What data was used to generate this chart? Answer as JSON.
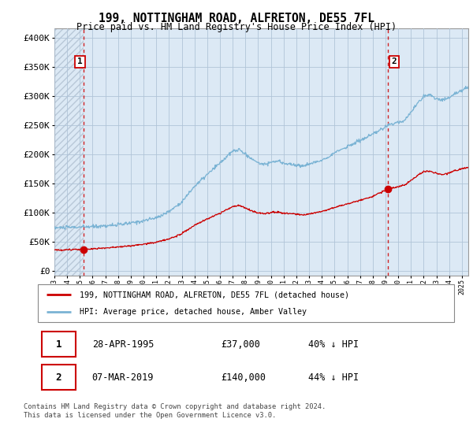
{
  "title": "199, NOTTINGHAM ROAD, ALFRETON, DE55 7FL",
  "subtitle": "Price paid vs. HM Land Registry's House Price Index (HPI)",
  "hpi_color": "#7ab3d4",
  "price_color": "#cc0000",
  "vline_color": "#cc0000",
  "bg_color": "#dce9f5",
  "hatch_color": "#b8c8d8",
  "grid_color": "#b0c4d8",
  "purchase1_year": 1995.32,
  "purchase1_price": 37000,
  "purchase1_label": "1",
  "purchase2_year": 2019.18,
  "purchase2_price": 140000,
  "purchase2_label": "2",
  "ylabel_values": [
    0,
    50000,
    100000,
    150000,
    200000,
    250000,
    300000,
    350000,
    400000
  ],
  "ylabel_texts": [
    "£0",
    "£50K",
    "£100K",
    "£150K",
    "£200K",
    "£250K",
    "£300K",
    "£350K",
    "£400K"
  ],
  "xmin": 1993,
  "xmax": 2025.5,
  "ymin": -8000,
  "ymax": 415000,
  "legend_line1": "199, NOTTINGHAM ROAD, ALFRETON, DE55 7FL (detached house)",
  "legend_line2": "HPI: Average price, detached house, Amber Valley",
  "table_row1_num": "1",
  "table_row1_date": "28-APR-1995",
  "table_row1_price": "£37,000",
  "table_row1_hpi": "40% ↓ HPI",
  "table_row2_num": "2",
  "table_row2_date": "07-MAR-2019",
  "table_row2_price": "£140,000",
  "table_row2_hpi": "44% ↓ HPI",
  "footer": "Contains HM Land Registry data © Crown copyright and database right 2024.\nThis data is licensed under the Open Government Licence v3.0."
}
